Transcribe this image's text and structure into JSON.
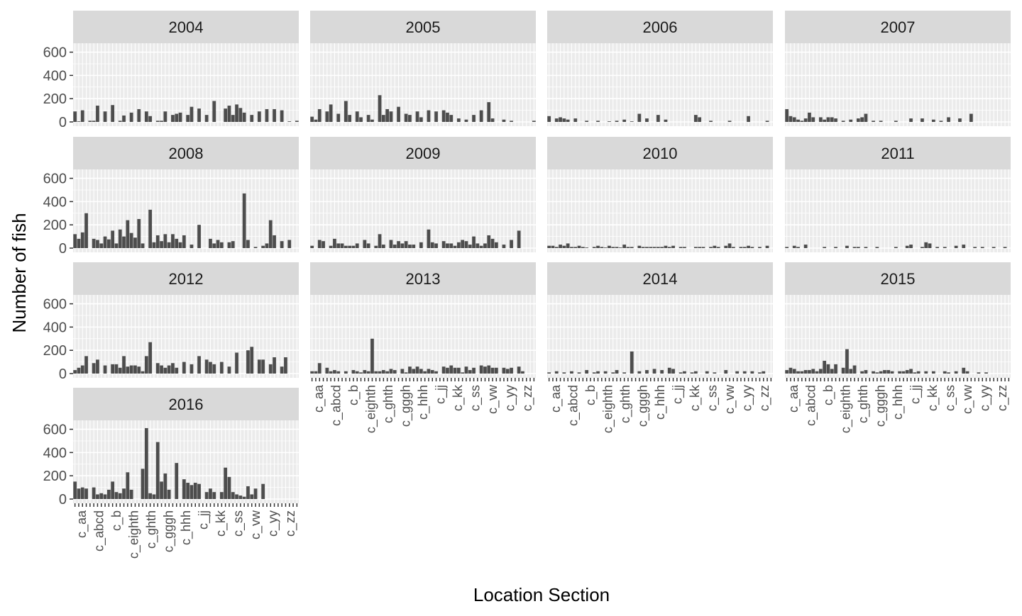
{
  "chart_data": {
    "type": "bar",
    "facet_by": "year",
    "xlabel": "Location Section",
    "ylabel": "Number of fish",
    "ylim": [
      0,
      640
    ],
    "y_ticks": [
      0,
      200,
      400,
      600
    ],
    "x_tick_labels_legible": [
      "c_aa",
      "c_abcd",
      "c_b",
      "c_eighth",
      "c_ghth",
      "c_gggh",
      "c_hhh",
      "c_jj",
      "c_kk",
      "c_ss",
      "c_vw",
      "c_yy",
      "c_zz"
    ],
    "bar_color": "#4d4d4d",
    "panel_background": "#ebebeb",
    "strip_background": "#d9d9d9",
    "grid": true,
    "n_categories": 60,
    "facets": [
      {
        "year": "2004",
        "values": [
          90,
          5,
          100,
          0,
          10,
          10,
          140,
          0,
          90,
          0,
          145,
          0,
          10,
          55,
          0,
          80,
          0,
          110,
          0,
          90,
          50,
          0,
          10,
          10,
          90,
          0,
          60,
          70,
          80,
          0,
          60,
          130,
          0,
          115,
          0,
          60,
          0,
          180,
          0,
          0,
          115,
          140,
          60,
          150,
          120,
          80,
          0,
          60,
          0,
          90,
          0,
          110,
          0,
          110,
          0,
          100,
          0,
          5,
          0,
          10
        ]
      },
      {
        "year": "2005",
        "values": [
          45,
          20,
          110,
          0,
          90,
          150,
          0,
          70,
          0,
          180,
          60,
          0,
          90,
          40,
          0,
          60,
          20,
          0,
          230,
          60,
          110,
          90,
          0,
          130,
          0,
          70,
          60,
          0,
          90,
          40,
          0,
          100,
          0,
          90,
          0,
          100,
          80,
          60,
          0,
          30,
          0,
          20,
          0,
          60,
          0,
          100,
          0,
          170,
          30,
          0,
          0,
          20,
          0,
          10,
          0,
          0,
          0,
          0,
          0,
          10
        ]
      },
      {
        "year": "2006",
        "values": [
          50,
          0,
          30,
          40,
          30,
          20,
          0,
          30,
          0,
          0,
          10,
          0,
          0,
          10,
          0,
          0,
          5,
          0,
          10,
          0,
          20,
          0,
          5,
          0,
          70,
          0,
          30,
          0,
          0,
          60,
          0,
          20,
          0,
          0,
          0,
          0,
          0,
          0,
          0,
          60,
          40,
          0,
          0,
          10,
          0,
          0,
          0,
          0,
          10,
          0,
          0,
          0,
          0,
          50,
          0,
          0,
          0,
          0,
          10,
          0
        ]
      },
      {
        "year": "2007",
        "values": [
          110,
          50,
          40,
          20,
          10,
          30,
          80,
          40,
          0,
          40,
          20,
          40,
          40,
          30,
          0,
          10,
          0,
          20,
          0,
          30,
          40,
          70,
          0,
          10,
          0,
          10,
          0,
          0,
          0,
          10,
          0,
          0,
          0,
          30,
          0,
          0,
          30,
          0,
          0,
          20,
          0,
          10,
          0,
          40,
          0,
          0,
          30,
          0,
          0,
          70,
          0,
          0,
          0,
          0,
          0,
          0,
          0,
          0,
          0,
          0
        ]
      },
      {
        "year": "2008",
        "values": [
          120,
          80,
          135,
          300,
          0,
          80,
          70,
          40,
          100,
          75,
          150,
          40,
          160,
          100,
          240,
          130,
          90,
          250,
          40,
          0,
          330,
          50,
          110,
          60,
          120,
          50,
          120,
          80,
          50,
          110,
          0,
          30,
          0,
          200,
          0,
          0,
          80,
          40,
          70,
          50,
          0,
          50,
          60,
          0,
          0,
          470,
          70,
          0,
          10,
          0,
          20,
          40,
          240,
          110,
          0,
          60,
          0,
          70,
          0,
          0
        ]
      },
      {
        "year": "2009",
        "values": [
          20,
          0,
          70,
          60,
          0,
          20,
          80,
          40,
          40,
          20,
          20,
          20,
          40,
          0,
          70,
          40,
          0,
          20,
          120,
          30,
          0,
          70,
          30,
          60,
          40,
          60,
          30,
          30,
          0,
          50,
          0,
          160,
          50,
          40,
          0,
          60,
          40,
          40,
          20,
          50,
          70,
          60,
          30,
          100,
          40,
          20,
          40,
          110,
          80,
          50,
          0,
          30,
          0,
          70,
          0,
          150,
          0,
          0,
          0,
          0
        ]
      },
      {
        "year": "2010",
        "values": [
          20,
          20,
          10,
          30,
          20,
          40,
          10,
          10,
          20,
          10,
          5,
          0,
          10,
          20,
          10,
          5,
          20,
          10,
          10,
          5,
          30,
          10,
          10,
          0,
          20,
          10,
          10,
          10,
          10,
          10,
          10,
          20,
          10,
          20,
          0,
          10,
          10,
          0,
          0,
          10,
          10,
          10,
          0,
          10,
          20,
          10,
          0,
          20,
          40,
          10,
          0,
          10,
          10,
          20,
          10,
          0,
          10,
          0,
          20,
          0
        ]
      },
      {
        "year": "2011",
        "values": [
          10,
          0,
          20,
          10,
          0,
          30,
          0,
          0,
          0,
          0,
          10,
          0,
          0,
          10,
          0,
          0,
          20,
          0,
          10,
          10,
          0,
          10,
          0,
          0,
          10,
          0,
          0,
          0,
          0,
          10,
          0,
          0,
          20,
          30,
          0,
          0,
          10,
          50,
          40,
          0,
          10,
          0,
          10,
          0,
          0,
          20,
          0,
          30,
          0,
          0,
          10,
          0,
          10,
          0,
          0,
          10,
          0,
          0,
          10,
          0
        ]
      },
      {
        "year": "2012",
        "values": [
          30,
          50,
          70,
          150,
          0,
          90,
          120,
          0,
          70,
          0,
          80,
          80,
          50,
          150,
          60,
          70,
          70,
          60,
          20,
          150,
          270,
          0,
          90,
          70,
          50,
          70,
          90,
          50,
          0,
          100,
          0,
          80,
          0,
          150,
          0,
          120,
          100,
          80,
          0,
          100,
          0,
          60,
          0,
          180,
          0,
          0,
          200,
          230,
          0,
          120,
          120,
          0,
          80,
          140,
          0,
          60,
          140,
          0,
          0,
          0
        ]
      },
      {
        "year": "2013",
        "values": [
          20,
          20,
          90,
          0,
          50,
          20,
          30,
          20,
          0,
          20,
          0,
          30,
          20,
          10,
          30,
          20,
          300,
          20,
          20,
          30,
          20,
          40,
          30,
          0,
          40,
          10,
          60,
          40,
          60,
          40,
          20,
          40,
          30,
          20,
          0,
          60,
          50,
          70,
          50,
          50,
          10,
          60,
          30,
          50,
          0,
          70,
          60,
          70,
          50,
          50,
          0,
          50,
          40,
          50,
          0,
          60,
          20,
          0,
          0,
          0
        ]
      },
      {
        "year": "2014",
        "values": [
          10,
          0,
          20,
          0,
          10,
          0,
          20,
          0,
          10,
          0,
          30,
          0,
          10,
          20,
          0,
          20,
          0,
          10,
          30,
          0,
          10,
          0,
          190,
          0,
          20,
          0,
          30,
          0,
          40,
          0,
          30,
          0,
          50,
          40,
          0,
          10,
          20,
          0,
          10,
          20,
          0,
          0,
          20,
          0,
          10,
          0,
          0,
          30,
          0,
          0,
          20,
          0,
          20,
          0,
          20,
          0,
          10,
          20,
          0,
          0
        ]
      },
      {
        "year": "2015",
        "values": [
          30,
          50,
          40,
          20,
          20,
          30,
          30,
          40,
          20,
          40,
          110,
          80,
          40,
          80,
          0,
          50,
          210,
          40,
          70,
          0,
          20,
          30,
          0,
          20,
          10,
          20,
          30,
          30,
          20,
          0,
          20,
          20,
          30,
          40,
          10,
          20,
          0,
          20,
          0,
          20,
          0,
          0,
          20,
          10,
          0,
          20,
          0,
          50,
          20,
          0,
          0,
          10,
          0,
          10,
          0,
          0,
          0,
          0,
          0,
          0
        ]
      },
      {
        "year": "2016",
        "values": [
          150,
          90,
          100,
          90,
          0,
          100,
          40,
          50,
          40,
          80,
          150,
          60,
          50,
          90,
          230,
          80,
          0,
          0,
          260,
          610,
          50,
          40,
          490,
          150,
          220,
          80,
          0,
          310,
          0,
          170,
          140,
          120,
          140,
          130,
          0,
          60,
          90,
          60,
          0,
          60,
          270,
          190,
          60,
          40,
          30,
          20,
          110,
          40,
          90,
          0,
          130,
          0,
          0,
          0,
          0,
          0,
          0,
          0,
          0,
          0
        ]
      }
    ]
  }
}
